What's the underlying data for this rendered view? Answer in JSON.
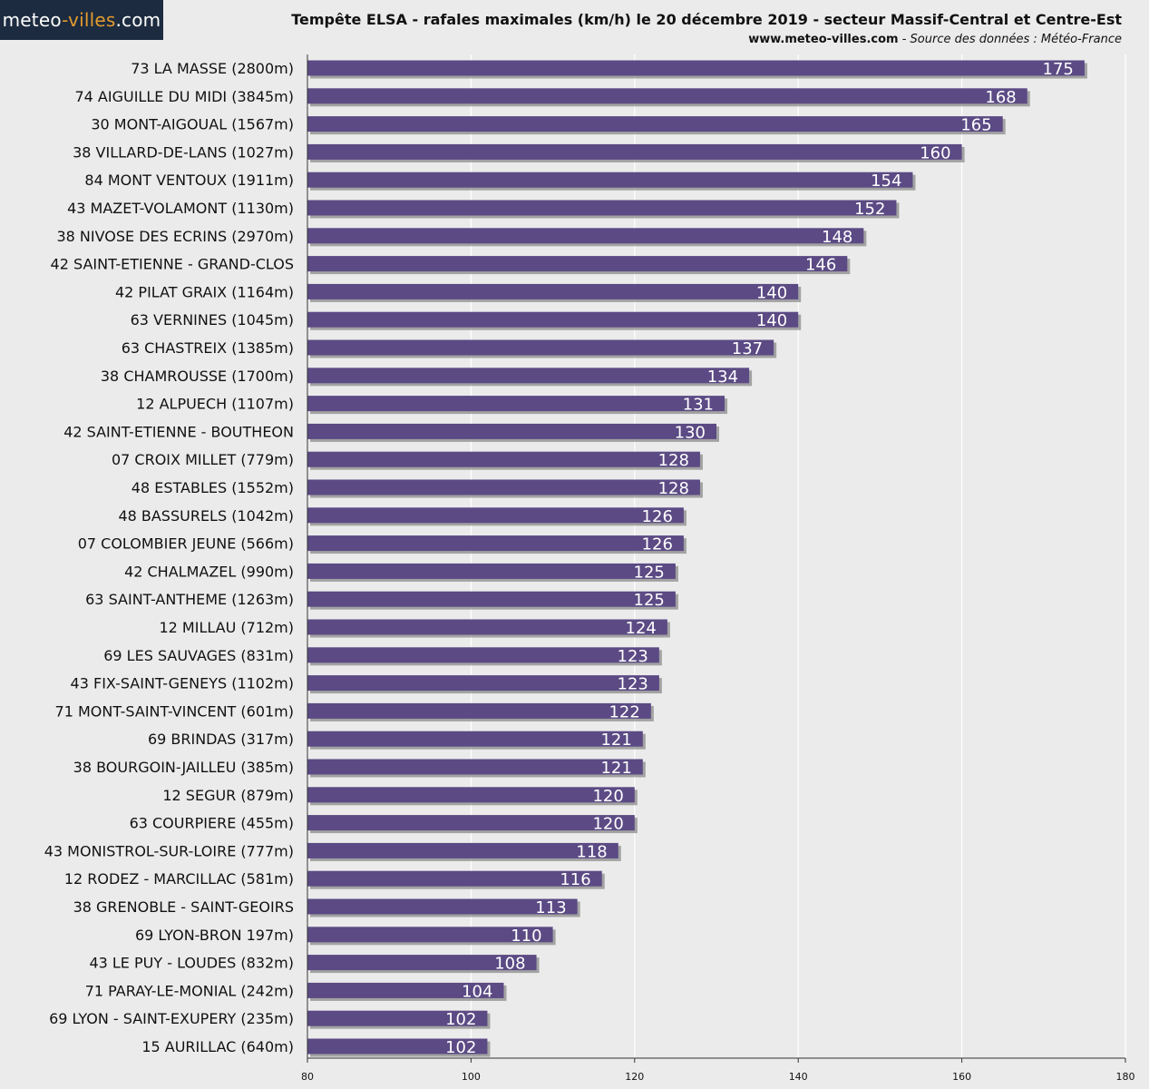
{
  "header": {
    "logo_part1": "meteo",
    "logo_part2": "-villes",
    "logo_part3": ".com",
    "title": "Tempête ELSA - rafales maximales (km/h) le 20 décembre 2019 - secteur Massif-Central et Centre-Est",
    "site": "www.meteo-villes.com",
    "separator": " - ",
    "source": "Source des données : Météo-France"
  },
  "colors": {
    "bar": "#5b4a84",
    "bar_shadow": "#8a8a8a",
    "grid": "#ffffff",
    "axis": "#333333"
  },
  "chart_data": {
    "type": "bar",
    "orientation": "horizontal",
    "title": "Tempête ELSA - rafales maximales (km/h) le 20 décembre 2019 - secteur Massif-Central et Centre-Est",
    "xlabel": "",
    "ylabel": "",
    "xlim": [
      80,
      180
    ],
    "xticks": [
      80,
      100,
      120,
      140,
      160,
      180
    ],
    "grid": true,
    "categories": [
      "73 LA MASSE (2800m)",
      "74 AIGUILLE DU MIDI (3845m)",
      "30 MONT-AIGOUAL (1567m)",
      "38 VILLARD-DE-LANS (1027m)",
      "84 MONT VENTOUX (1911m)",
      "43 MAZET-VOLAMONT (1130m)",
      "38 NIVOSE DES ECRINS (2970m)",
      "42 SAINT-ETIENNE - GRAND-CLOS",
      "42 PILAT GRAIX (1164m)",
      "63 VERNINES (1045m)",
      "63 CHASTREIX (1385m)",
      "38 CHAMROUSSE (1700m)",
      "12 ALPUECH (1107m)",
      "42 SAINT-ETIENNE - BOUTHEON",
      "07 CROIX MILLET (779m)",
      "48 ESTABLES (1552m)",
      "48 BASSURELS (1042m)",
      "07 COLOMBIER JEUNE (566m)",
      "42 CHALMAZEL (990m)",
      "63 SAINT-ANTHEME (1263m)",
      "12 MILLAU (712m)",
      "69 LES SAUVAGES (831m)",
      "43 FIX-SAINT-GENEYS (1102m)",
      "71 MONT-SAINT-VINCENT (601m)",
      "69 BRINDAS (317m)",
      "38 BOURGOIN-JAILLEU (385m)",
      "12 SEGUR (879m)",
      "63 COURPIERE (455m)",
      "43 MONISTROL-SUR-LOIRE (777m)",
      "12 RODEZ - MARCILLAC (581m)",
      "38 GRENOBLE - SAINT-GEOIRS",
      "69 LYON-BRON 197m)",
      "43 LE PUY - LOUDES (832m)",
      "71 PARAY-LE-MONIAL (242m)",
      "69 LYON - SAINT-EXUPERY (235m)",
      "15 AURILLAC (640m)"
    ],
    "values": [
      175,
      168,
      165,
      160,
      154,
      152,
      148,
      146,
      140,
      140,
      137,
      134,
      131,
      130,
      128,
      128,
      126,
      126,
      125,
      125,
      124,
      123,
      123,
      122,
      121,
      121,
      120,
      120,
      118,
      116,
      113,
      110,
      108,
      104,
      102,
      102
    ]
  }
}
